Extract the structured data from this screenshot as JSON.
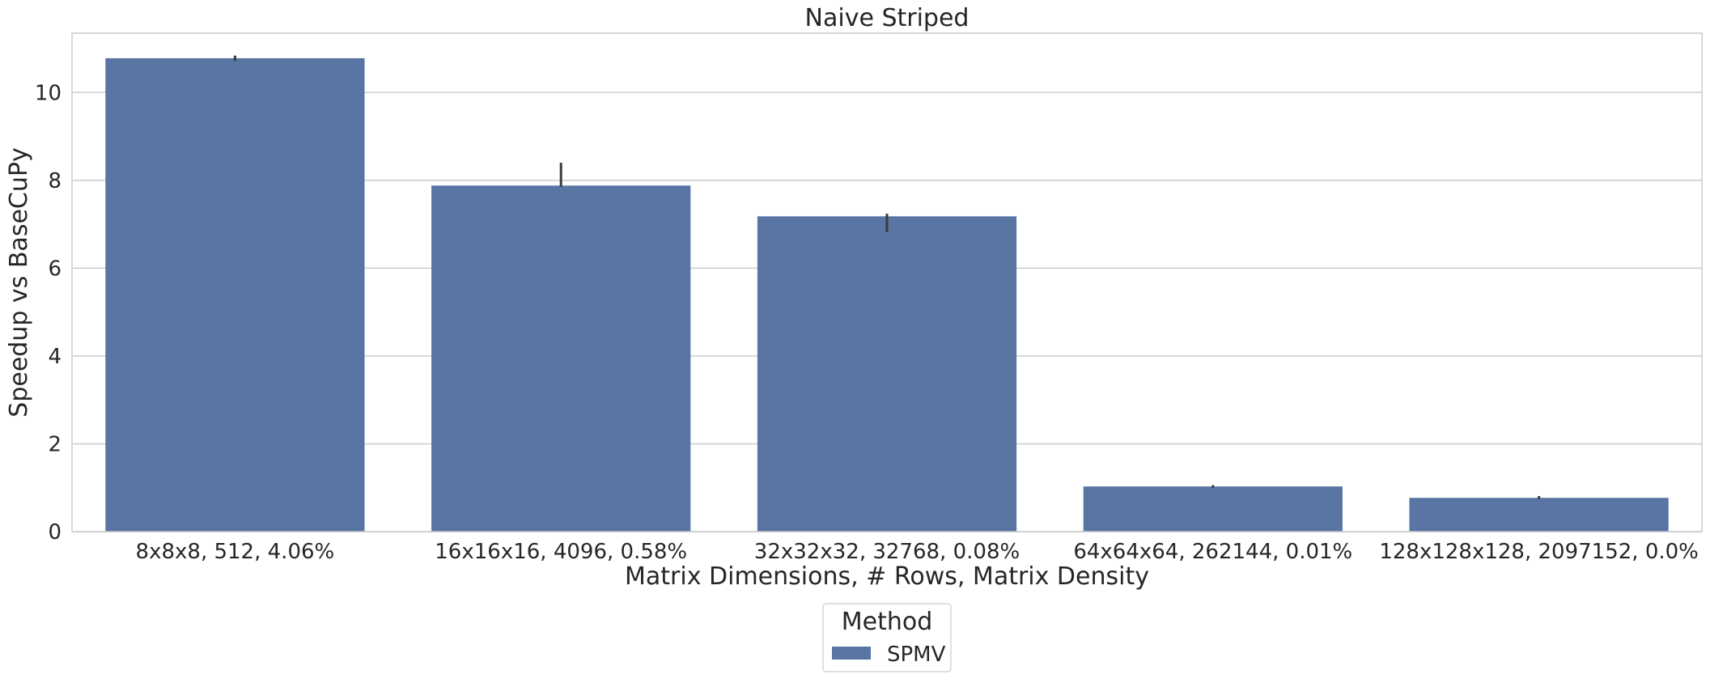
{
  "chart_data": {
    "type": "bar",
    "title": "Naive Striped",
    "xlabel": "Matrix Dimensions, # Rows, Matrix Density",
    "ylabel": "Speedup vs BaseCuPy",
    "categories": [
      "8x8x8, 512, 4.06%",
      "16x16x16, 4096, 0.58%",
      "32x32x32, 32768, 0.08%",
      "64x64x64, 262144, 0.01%",
      "128x128x128, 2097152, 0.0%"
    ],
    "series": [
      {
        "name": "SPMV",
        "values": [
          10.78,
          7.88,
          7.18,
          1.03,
          0.77
        ],
        "error_low": [
          10.72,
          7.85,
          6.82,
          1.0,
          0.74
        ],
        "error_high": [
          10.84,
          8.4,
          7.24,
          1.06,
          0.81
        ],
        "color": "#5975a4"
      }
    ],
    "ylim": [
      0,
      11.35
    ],
    "yticks": [
      0,
      2,
      4,
      6,
      8,
      10
    ],
    "grid": true,
    "legend": {
      "title": "Method",
      "placement": "bottom-center"
    }
  }
}
